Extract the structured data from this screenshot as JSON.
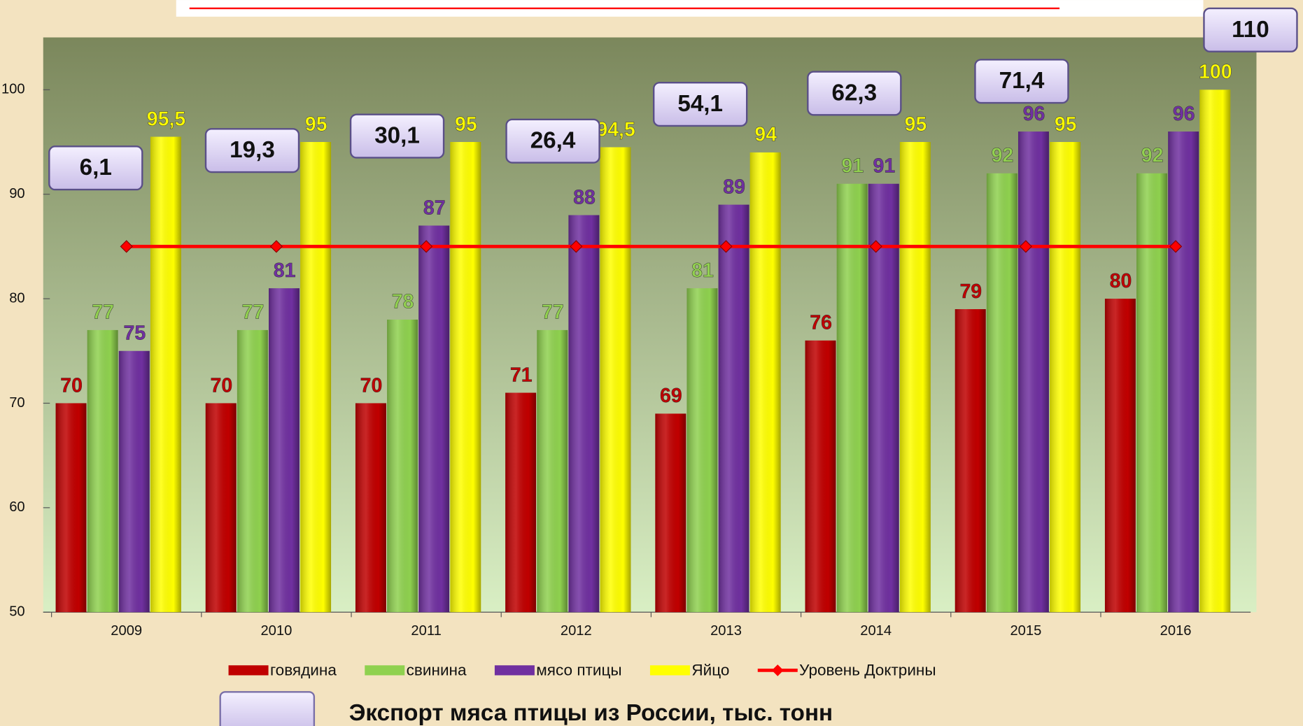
{
  "chart_data": {
    "type": "bar",
    "categories": [
      "2009",
      "2010",
      "2011",
      "2012",
      "2013",
      "2014",
      "2015",
      "2016"
    ],
    "series": [
      {
        "name": "говядина",
        "color": "#c00000",
        "label_color": "#c00000",
        "values": [
          70,
          70,
          70,
          71,
          69,
          76,
          79,
          80
        ]
      },
      {
        "name": "свинина",
        "color": "#8fd14f",
        "label_color": "#92d050",
        "values": [
          77,
          77,
          78,
          77,
          81,
          91,
          92,
          92
        ]
      },
      {
        "name": "мясо птицы",
        "color": "#7030a0",
        "label_color": "#7030a0",
        "values": [
          75,
          81,
          87,
          88,
          89,
          91,
          96,
          96
        ]
      },
      {
        "name": "Яйцо",
        "color": "#ffff00",
        "label_color": "#ffff00",
        "values": [
          95.5,
          95,
          95,
          94.5,
          94,
          95,
          95,
          100
        ],
        "value_labels": [
          "95,5",
          "95",
          "95",
          "94,5",
          "94",
          "95",
          "95",
          "100"
        ]
      },
      {
        "name": "Уровень Доктрины",
        "type": "line",
        "color": "#ff0000",
        "values": [
          85,
          85,
          85,
          85,
          85,
          85,
          85,
          85
        ]
      }
    ],
    "ylim": [
      50,
      100
    ],
    "yticks": [
      50,
      60,
      70,
      80,
      90,
      100
    ],
    "annotations": {
      "title": "Экспорт мяса птицы из России, тыс. тонн",
      "values": [
        6.1,
        19.3,
        30.1,
        26.4,
        54.1,
        62.3,
        71.4,
        110
      ],
      "value_labels": [
        "6,1",
        "19,3",
        "30,1",
        "26,4",
        "54,1",
        "62,3",
        "71,4",
        "110"
      ]
    }
  }
}
